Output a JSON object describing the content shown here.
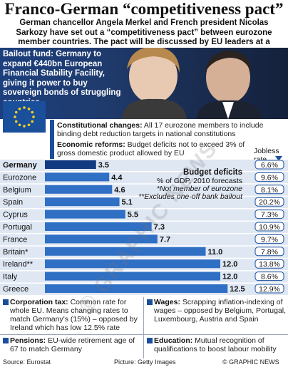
{
  "title": "Franco-German “competitiveness pact”",
  "intro": "German chancellor Angela Merkel and French president Nicolas Sarkozy have set out a “competitiveness pact” between eurozone member countries. The pact will be discussed by EU leaders at a summit in March",
  "bailout": "Bailout fund: Germany to expand €440bn European Financial Stability Facility, giving it power to buy sovereign bonds of struggling countries",
  "constitutional": {
    "label": "Constitutional changes:",
    "text": " All 17 eurozone members to include binding debt reduction targets in national constitutions"
  },
  "economic": {
    "label": "Economic reforms:",
    "text": " Budget deficits not to exceed 3% of gross domestic product allowed by EU"
  },
  "chart_data": {
    "type": "bar",
    "orientation": "horizontal",
    "title": "Budget deficits",
    "subtitle": "% of GDP, 2010 forecasts",
    "notes": [
      "*Not member of eurozone",
      "**Excludes one-off bank bailout"
    ],
    "categories": [
      "Germany",
      "Eurozone",
      "Belgium",
      "Spain",
      "Cyprus",
      "Portugal",
      "France",
      "Britain*",
      "Ireland**",
      "Italy",
      "Greece"
    ],
    "values": [
      3.5,
      4.4,
      4.6,
      5.1,
      5.5,
      7.3,
      7.7,
      11.0,
      12.0,
      12.0,
      12.5
    ],
    "value_labels": [
      "3.5",
      "4.4",
      "4.6",
      "5.1",
      "5.5",
      "7.3",
      "7.7",
      "11.0",
      "12.0",
      "12.0",
      "12.5"
    ],
    "highlight_index": 0,
    "jobless_header": "Jobless rate",
    "jobless_rate": [
      "6.6%",
      "9.6%",
      "8.1%",
      "20.2%",
      "7.3%",
      "10.9%",
      "9.7%",
      "7.8%",
      "13.8%",
      "8.6%",
      "12.9%"
    ],
    "colors": {
      "bar": "#2f6fc4",
      "highlight": "#123a80",
      "band": "#dfe7f3"
    }
  },
  "cells": {
    "corporation": {
      "label": "Corporation tax:",
      "text": " Common rate for whole EU. Means changing rates to match Germany's (15%) – opposed by Ireland which has low 12.5% rate"
    },
    "wages": {
      "label": "Wages:",
      "text": " Scrapping inflation-indexing of wages – opposed by Belgium, Portugal, Luxembourg, Austria and Spain"
    },
    "pensions": {
      "label": "Pensions:",
      "text": " EU-wide retirement age of 67 to match Germany"
    },
    "education": {
      "label": "Education:",
      "text": " Mutual recognition of qualifications to boost labour mobility"
    }
  },
  "footer": {
    "source": "Source: Eurostat",
    "picture": "Picture: Getty Images",
    "credit": "© GRAPHIC NEWS"
  },
  "watermark": "© GRAPHIC NEWS"
}
